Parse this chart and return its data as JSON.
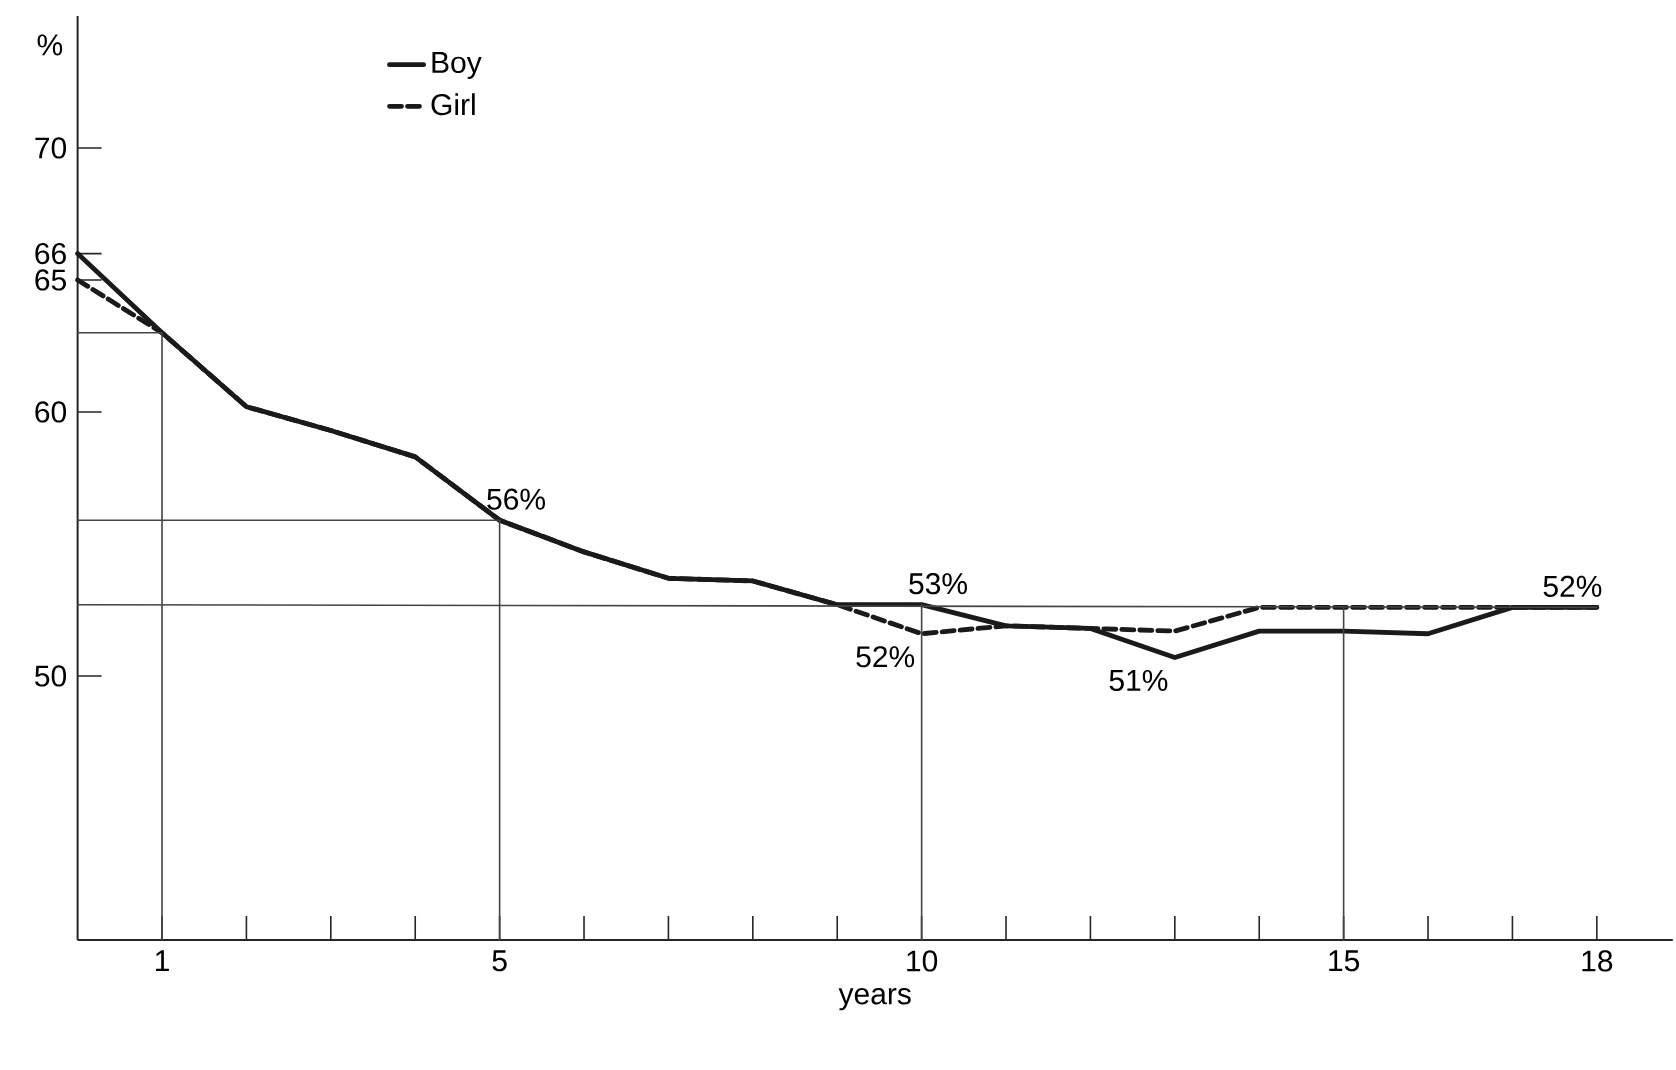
{
  "chart_data": {
    "type": "line",
    "xlabel": "years",
    "ylabel": "%",
    "xlim": [
      0,
      18.9
    ],
    "ylim": [
      40,
      75
    ],
    "xticks": [
      1,
      {
        "value": 2,
        "label": null
      },
      {
        "value": 3,
        "label": null
      },
      {
        "value": 4,
        "label": null
      },
      5,
      {
        "value": 6,
        "label": null
      },
      {
        "value": 7,
        "label": null
      },
      {
        "value": 8,
        "label": null
      },
      {
        "value": 9,
        "label": null
      },
      10,
      {
        "value": 11,
        "label": null
      },
      {
        "value": 12,
        "label": null
      },
      {
        "value": 13,
        "label": null
      },
      {
        "value": 14,
        "label": null
      },
      15,
      {
        "value": 16,
        "label": null
      },
      {
        "value": 17,
        "label": null
      },
      18
    ],
    "yticks": [
      50,
      60,
      65,
      66,
      70
    ],
    "legend": "top left",
    "series": [
      {
        "name": "Boy",
        "color": "#1a1a1a",
        "line_style": "solid",
        "x": [
          0,
          1,
          2,
          3,
          4,
          5,
          6,
          7,
          8,
          9,
          10,
          11,
          12,
          13,
          14,
          15,
          16,
          17,
          18
        ],
        "values": [
          66,
          63,
          60.2,
          59.3,
          58.3,
          55.9,
          54.7,
          53.7,
          53.6,
          52.7,
          52.7,
          51.9,
          51.8,
          50.7,
          51.7,
          51.7,
          51.6,
          52.6,
          52.6
        ]
      },
      {
        "name": "Girl",
        "color": "#1a1a1a",
        "line_style": "dashed",
        "x": [
          0,
          1,
          2,
          3,
          4,
          5,
          6,
          7,
          8,
          9,
          10,
          11,
          12,
          13,
          14,
          15,
          16,
          17,
          18
        ],
        "values": [
          65,
          63,
          60.2,
          59.3,
          58.3,
          55.9,
          54.7,
          53.7,
          53.6,
          52.7,
          51.6,
          51.9,
          51.8,
          51.7,
          52.6,
          52.6,
          52.6,
          52.6,
          52.6
        ]
      },
      {
        "color": "#444444",
        "line_style": "solid",
        "x": [
          0,
          1,
          1
        ],
        "values": [
          63,
          63,
          40
        ]
      },
      {
        "color": "#444444",
        "line_style": "solid",
        "x": [
          0,
          5,
          5
        ],
        "values": [
          55.9,
          55.9,
          40
        ]
      },
      {
        "color": "#444444",
        "line_style": "solid",
        "x": [
          0,
          18
        ],
        "values": [
          52.7,
          52.6
        ]
      },
      {
        "color": "#444444",
        "line_style": "solid",
        "x": [
          10,
          10
        ],
        "values": [
          52.7,
          40
        ]
      },
      {
        "color": "#444444",
        "line_style": "solid",
        "x": [
          15,
          15
        ],
        "values": [
          52.6,
          40
        ]
      }
    ],
    "annotations": [
      {
        "text": "56%",
        "x": 5,
        "y": 55.9
      },
      {
        "text": "53%",
        "x": 10,
        "y": 52.7
      },
      {
        "text": "52%",
        "x": 10,
        "y": 51.6
      },
      {
        "text": "51%",
        "x": 13,
        "y": 50.7
      },
      {
        "text": "52%",
        "x": 18,
        "y": 52.6
      }
    ]
  }
}
